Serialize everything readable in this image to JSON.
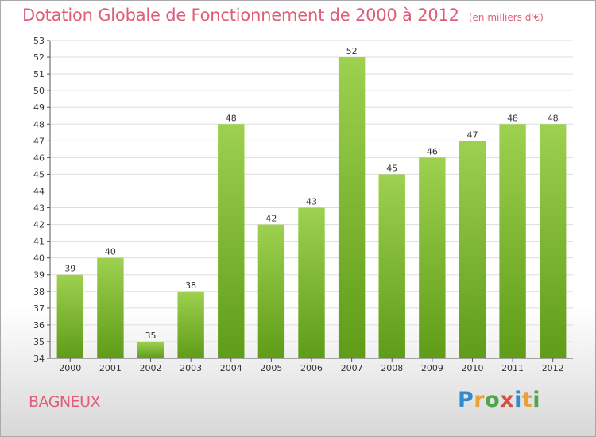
{
  "header": {
    "title": "Dotation Globale de Fonctionnement de 2000 à 2012",
    "subtitle": "(en milliers d'€)"
  },
  "footer": {
    "city": "BAGNEUX",
    "logo_letters": [
      "P",
      "r",
      "o",
      "x",
      "i",
      "t",
      "i"
    ]
  },
  "colors": {
    "title": "#e05d7a",
    "bar_top": "#9dd14f",
    "bar_bottom": "#5f9c18",
    "axis": "#555555",
    "grid": "#dddddd"
  },
  "chart_data": {
    "type": "bar",
    "title": "Dotation Globale de Fonctionnement de 2000 à 2012",
    "subtitle": "(en milliers d'€)",
    "categories": [
      "2000",
      "2001",
      "2002",
      "2003",
      "2004",
      "2005",
      "2006",
      "2007",
      "2008",
      "2009",
      "2010",
      "2011",
      "2012"
    ],
    "values": [
      39,
      40,
      35,
      38,
      48,
      42,
      43,
      52,
      45,
      46,
      47,
      48,
      48
    ],
    "ylim": [
      34,
      53
    ],
    "yticks": [
      34,
      35,
      36,
      37,
      38,
      39,
      40,
      41,
      42,
      43,
      44,
      45,
      46,
      47,
      48,
      49,
      50,
      51,
      52,
      53
    ],
    "grid": "horizontal",
    "data_labels": true,
    "xlabel": "",
    "ylabel": ""
  }
}
